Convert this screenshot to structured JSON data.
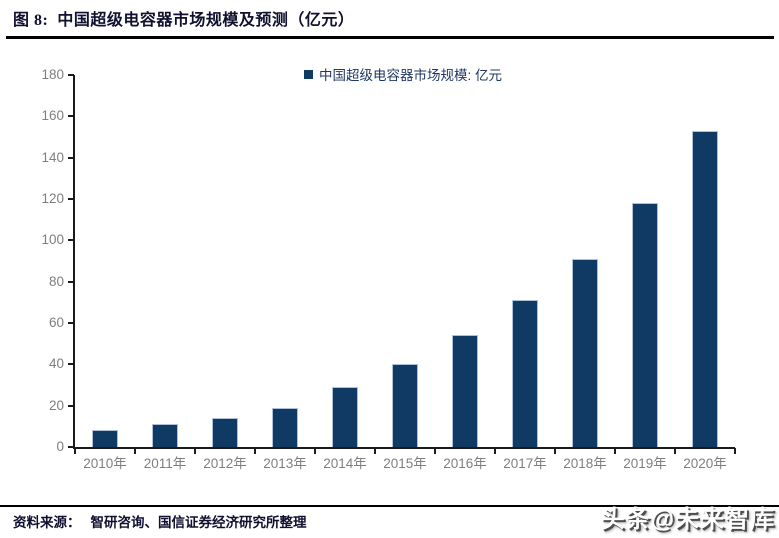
{
  "header": {
    "figure_label": "图 8:",
    "title": "中国超级电容器市场规模及预测（亿元）"
  },
  "chart_data": {
    "type": "bar",
    "title": "中国超级电容器市场规模及预测（亿元）",
    "legend": "中国超级电容器市场规模: 亿元",
    "legend_position": "top-center",
    "categories": [
      "2010年",
      "2011年",
      "2012年",
      "2013年",
      "2014年",
      "2015年",
      "2016年",
      "2017年",
      "2018年",
      "2019年",
      "2020年"
    ],
    "values": [
      8,
      11,
      14,
      19,
      29,
      40,
      54,
      71,
      91,
      118,
      153
    ],
    "xlabel": "",
    "ylabel": "",
    "ylim": [
      0,
      180
    ],
    "yticks": [
      0,
      20,
      40,
      60,
      80,
      100,
      120,
      140,
      160,
      180
    ],
    "grid": false,
    "colors": {
      "bar_fill": "#0E3A63",
      "bar_border": "#AEC0DC",
      "axis_text": "#7F7F7F",
      "legend_text": "#1F3864",
      "axis_line": "#1A1A1A"
    }
  },
  "footer": {
    "source_label": "资料来源：",
    "source_text": "智研咨询、国信证券经济研究所整理"
  },
  "watermark": {
    "text": "头条@未来智库"
  }
}
